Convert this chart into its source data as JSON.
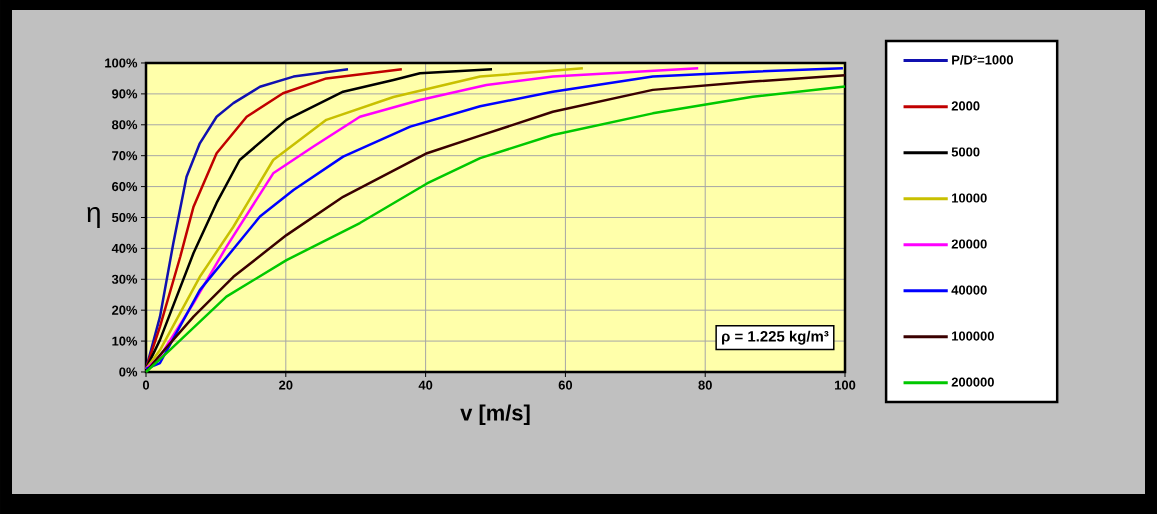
{
  "chart_data": {
    "type": "line",
    "xlabel": "v [m/s]",
    "ylabel": "η",
    "xlim": [
      0,
      100
    ],
    "ylim": [
      0,
      100
    ],
    "xticks": [
      0,
      20,
      40,
      60,
      80,
      100
    ],
    "yticks": [
      {
        "value": 0,
        "label": "0%"
      },
      {
        "value": 10,
        "label": "10%"
      },
      {
        "value": 20,
        "label": "20%"
      },
      {
        "value": 30,
        "label": "30%"
      },
      {
        "value": 40,
        "label": "40%"
      },
      {
        "value": 50,
        "label": "50%"
      },
      {
        "value": 60,
        "label": "60%"
      },
      {
        "value": 70,
        "label": "70%"
      },
      {
        "value": 80,
        "label": "80%"
      },
      {
        "value": 90,
        "label": "90%"
      },
      {
        "value": 100,
        "label": "100%"
      }
    ],
    "grid": true,
    "legend": "right",
    "marker": "none",
    "line_style": "solid",
    "annotations": [
      "ρ = 1.225 kg/m³"
    ],
    "series": [
      {
        "name": "P/D²=1000",
        "color": "#1010b0",
        "x": [
          0,
          2.0,
          3.9,
          5.8,
          7.7,
          10.1,
          12.5,
          16.3,
          21.1,
          28.9
        ],
        "values": [
          1,
          17.9,
          41.6,
          63.2,
          74,
          82.6,
          87,
          92.3,
          95.6,
          98
        ]
      },
      {
        "name": "2000",
        "color": "#c00000",
        "x": [
          0,
          2.0,
          4.9,
          6.8,
          10.1,
          14.4,
          19.6,
          25.8,
          36.6
        ],
        "values": [
          1,
          14.7,
          37.3,
          53.5,
          70.8,
          82.6,
          90.2,
          95,
          98
        ]
      },
      {
        "name": "5000",
        "color": "#000000",
        "x": [
          0,
          2.0,
          6.8,
          10.1,
          13.4,
          20.1,
          28.2,
          35.4,
          39.2,
          49.5
        ],
        "values": [
          1,
          10.4,
          38.5,
          54.7,
          68.6,
          81.6,
          90.7,
          94.5,
          96.7,
          98
        ]
      },
      {
        "name": "10000",
        "color": "#c8c000",
        "x": [
          0,
          2.0,
          7.7,
          12.5,
          18.2,
          25.8,
          35.4,
          47.8,
          62.5
        ],
        "values": [
          1,
          7.1,
          30.8,
          47,
          68.6,
          81.6,
          89,
          95.6,
          98.3
        ]
      },
      {
        "name": "20000",
        "color": "#ff00ff",
        "x": [
          0,
          2.0,
          6.8,
          11.5,
          18.2,
          23.9,
          30.6,
          39.2,
          48.7,
          58.2,
          79
        ],
        "values": [
          1,
          5,
          22.3,
          40.5,
          64.3,
          72.9,
          82.6,
          88,
          92.9,
          95.6,
          98.3
        ]
      },
      {
        "name": "40000",
        "color": "#0000ff",
        "x": [
          0,
          2.0,
          7.7,
          16.3,
          21.1,
          28.2,
          37.8,
          47.8,
          58.2,
          72.5,
          86.8,
          99.7
        ],
        "values": [
          1,
          2.9,
          26.5,
          50.3,
          58.9,
          69.7,
          79.4,
          86,
          90.7,
          95.6,
          97.2,
          98.3
        ]
      },
      {
        "name": "100000",
        "color": "#3a0000",
        "x": [
          0,
          2.0,
          6.8,
          12.5,
          20.1,
          28.2,
          40.2,
          47.8,
          58.2,
          72.5,
          86.8,
          100
        ],
        "values": [
          0,
          5.5,
          17.9,
          30.8,
          44.3,
          56.7,
          70.8,
          76.5,
          84.2,
          91.3,
          94,
          96
        ]
      },
      {
        "name": "200000",
        "color": "#00c800",
        "x": [
          0,
          3.4,
          11.5,
          20.1,
          30.6,
          40.2,
          47.8,
          58.2,
          72.5,
          86.8,
          100
        ],
        "values": [
          0,
          7.1,
          24.4,
          36.2,
          48.2,
          61,
          69.2,
          76.7,
          83.7,
          89.1,
          92.4
        ]
      }
    ]
  }
}
